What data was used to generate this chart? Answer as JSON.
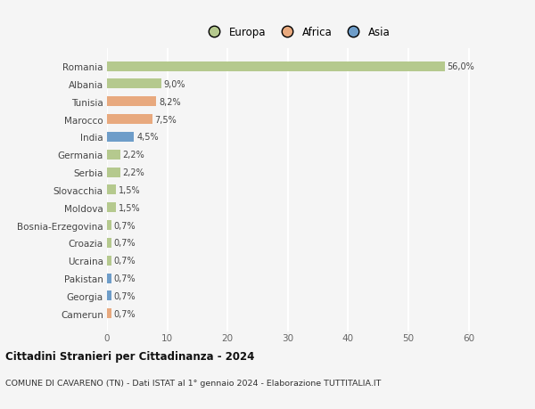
{
  "countries": [
    "Romania",
    "Albania",
    "Tunisia",
    "Marocco",
    "India",
    "Germania",
    "Serbia",
    "Slovacchia",
    "Moldova",
    "Bosnia-Erzegovina",
    "Croazia",
    "Ucraina",
    "Pakistan",
    "Georgia",
    "Camerun"
  ],
  "values": [
    56.0,
    9.0,
    8.2,
    7.5,
    4.5,
    2.2,
    2.2,
    1.5,
    1.5,
    0.7,
    0.7,
    0.7,
    0.7,
    0.7,
    0.7
  ],
  "continents": [
    "Europa",
    "Europa",
    "Africa",
    "Africa",
    "Asia",
    "Europa",
    "Europa",
    "Europa",
    "Europa",
    "Europa",
    "Europa",
    "Europa",
    "Asia",
    "Asia",
    "Africa"
  ],
  "labels": [
    "56,0%",
    "9,0%",
    "8,2%",
    "7,5%",
    "4,5%",
    "2,2%",
    "2,2%",
    "1,5%",
    "1,5%",
    "0,7%",
    "0,7%",
    "0,7%",
    "0,7%",
    "0,7%",
    "0,7%"
  ],
  "colors": {
    "Europa": "#b5c98e",
    "Africa": "#e8a97e",
    "Asia": "#6e9dc9"
  },
  "legend_labels": [
    "Europa",
    "Africa",
    "Asia"
  ],
  "legend_colors": [
    "#b5c98e",
    "#e8a97e",
    "#6e9dc9"
  ],
  "xlim": [
    0,
    63
  ],
  "xticks": [
    0,
    10,
    20,
    30,
    40,
    50,
    60
  ],
  "title": "Cittadini Stranieri per Cittadinanza - 2024",
  "subtitle": "COMUNE DI CAVARENO (TN) - Dati ISTAT al 1° gennaio 2024 - Elaborazione TUTTITALIA.IT",
  "background_color": "#f5f5f5",
  "grid_color": "#ffffff",
  "bar_height": 0.55
}
